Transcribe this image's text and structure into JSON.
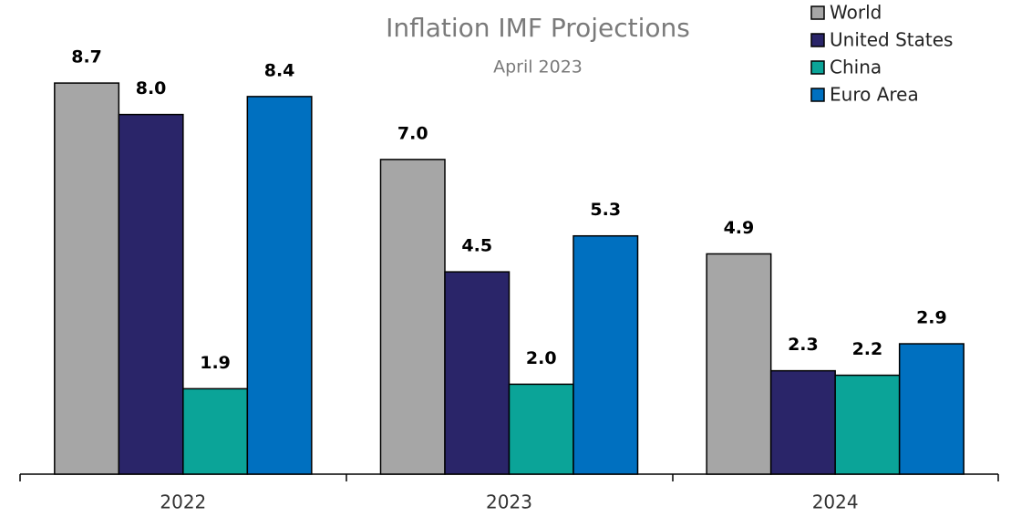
{
  "chart_data": {
    "type": "bar",
    "title": "Inflation IMF Projections",
    "subtitle": "April 2023",
    "categories": [
      "2022",
      "2023",
      "2024"
    ],
    "series": [
      {
        "name": "World",
        "color": "#a6a6a6",
        "values": [
          8.7,
          7.0,
          4.9
        ],
        "value_labels": [
          "8.7",
          "7.0",
          "4.9"
        ]
      },
      {
        "name": "United States",
        "color": "#2a2569",
        "values": [
          8.0,
          4.5,
          2.3
        ],
        "value_labels": [
          "8.0",
          "4.5",
          "2.3"
        ]
      },
      {
        "name": "China",
        "color": "#0ba498",
        "values": [
          1.9,
          2.0,
          2.2
        ],
        "value_labels": [
          "1.9",
          "2.0",
          "2.2"
        ]
      },
      {
        "name": "Euro Area",
        "color": "#0070c0",
        "values": [
          8.4,
          5.3,
          2.9
        ],
        "value_labels": [
          "8.4",
          "5.3",
          "2.9"
        ]
      }
    ],
    "ylim": [
      0,
      10
    ],
    "legend": "top-right"
  }
}
